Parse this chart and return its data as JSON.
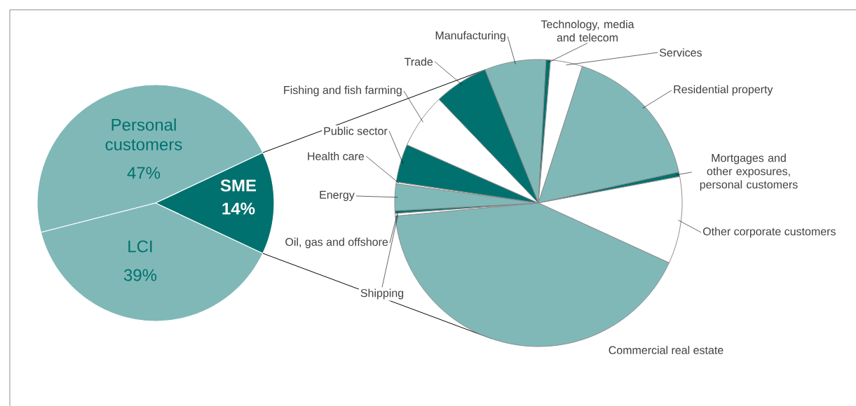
{
  "chart_data": [
    {
      "type": "pie",
      "categories": [
        "Personal customers",
        "LCI",
        "SME"
      ],
      "values": [
        47,
        39,
        14
      ],
      "colors": [
        "#80b8b8",
        "#80b8b8",
        "#00716e"
      ],
      "value_labels": [
        "47%",
        "39%",
        "14%"
      ]
    },
    {
      "type": "pie",
      "categories": [
        "Manufacturing",
        "Technology, media and telecom",
        "Services",
        "Residential property",
        "Mortgages and other exposures, personal customers",
        "Other corporate customers",
        "Commercial real estate",
        "Shipping",
        "Oil, gas and offshore",
        "Energy",
        "Health care",
        "Public sector",
        "Fishing and fish farming",
        "Trade"
      ],
      "values": [
        6.9,
        0.5,
        3.6,
        16.6,
        0.5,
        9.8,
        41.7,
        0.3,
        0.3,
        3.0,
        0.2,
        4.3,
        6.2,
        6.1
      ],
      "colors": [
        "#80b8b8",
        "#00716e",
        "#ffffff",
        "#80b8b8",
        "#00716e",
        "#ffffff",
        "#80b8b8",
        "#ffffff",
        "#00716e",
        "#80b8b8",
        "#ffffff",
        "#00716e",
        "#ffffff",
        "#00716e"
      ]
    }
  ]
}
